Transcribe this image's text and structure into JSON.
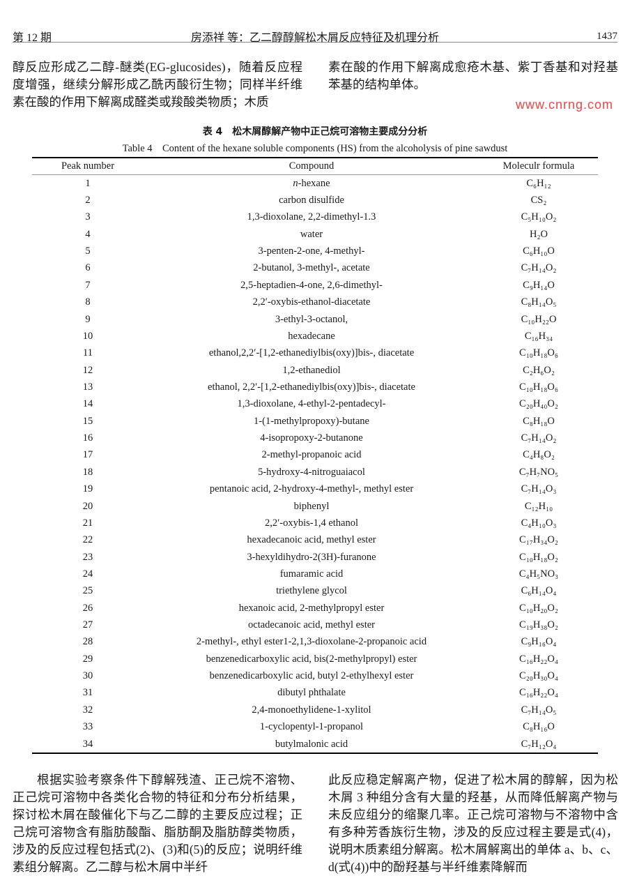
{
  "header": {
    "issue": "第 12 期",
    "running_title": "房添祥 等：乙二醇醇解松木屑反应特征及机理分析",
    "page_number": "1437"
  },
  "top": {
    "left": "醇反应形成乙二醇-醚类(EG-glucosides)，随着反应程度增强，继续分解形成乙酰丙酸衍生物；同样半纤维素在酸的作用下解离成醛类或羧酸类物质；木质",
    "right": "素在酸的作用下解离成愈疮木基、紫丁香基和对羟基苯基的结构单体。"
  },
  "table": {
    "caption_cn": "表 4　松木屑醇解产物中正己烷可溶物主要成分分析",
    "caption_en": "Table 4　Content of the hexane soluble components (HS) from the alcoholysis of pine sawdust",
    "headers": [
      "Peak number",
      "Compound",
      "Moleculr formula"
    ],
    "rows": [
      [
        "1",
        "n-hexane",
        "C₆H₁₂"
      ],
      [
        "2",
        "carbon disulfide",
        "CS₂"
      ],
      [
        "3",
        "1,3-dioxolane, 2,2-dimethyl-1.3",
        "C₅H₁₀O₂"
      ],
      [
        "4",
        "water",
        "H₂O"
      ],
      [
        "5",
        "3-penten-2-one, 4-methyl-",
        "C₆H₁₀O"
      ],
      [
        "6",
        "2-butanol, 3-methyl-, acetate",
        "C₇H₁₄O₂"
      ],
      [
        "7",
        "2,5-heptadien-4-one, 2,6-dimethyl-",
        "C₉H₁₄O"
      ],
      [
        "8",
        "2,2′-oxybis-ethanol-diacetate",
        "C₈H₁₄O₅"
      ],
      [
        "9",
        "3-ethyl-3-octanol,",
        "C₁₀H₂₂O"
      ],
      [
        "10",
        "hexadecane",
        "C₁₆H₃₄"
      ],
      [
        "11",
        "ethanol,2,2′-[1,2-ethanediylbis(oxy)]bis-, diacetate",
        "C₁₀H₁₈O₆"
      ],
      [
        "12",
        "1,2-ethanediol",
        "C₂H₆O₂"
      ],
      [
        "13",
        "ethanol, 2,2′-[1,2-ethanediylbis(oxy)]bis-, diacetate",
        "C₁₀H₁₈O₆"
      ],
      [
        "14",
        "1,3-dioxolane, 4-ethyl-2-pentadecyl-",
        "C₂₀H₄₀O₂"
      ],
      [
        "15",
        "1-(1-methylpropoxy)-butane",
        "C₈H₁₈O"
      ],
      [
        "16",
        "4-isopropoxy-2-butanone",
        "C₇H₁₄O₂"
      ],
      [
        "17",
        "2-methyl-propanoic acid",
        "C₄H₈O₂"
      ],
      [
        "18",
        "5-hydroxy-4-nitroguaiacol",
        "C₇H₇NO₅"
      ],
      [
        "19",
        "pentanoic acid, 2-hydroxy-4-methyl-, methyl ester",
        "C₇H₁₄O₃"
      ],
      [
        "20",
        "biphenyl",
        "C₁₂H₁₀"
      ],
      [
        "21",
        "2,2′-oxybis-1,4 ethanol",
        "C₄H₁₀O₃"
      ],
      [
        "22",
        "hexadecanoic acid, methyl ester",
        "C₁₇H₃₄O₂"
      ],
      [
        "23",
        "3-hexyldihydro-2(3H)-furanone",
        "C₁₀H₁₈O₂"
      ],
      [
        "24",
        "fumaramic acid",
        "C₄H₅NO₃"
      ],
      [
        "25",
        "triethylene glycol",
        "C₆H₁₄O₄"
      ],
      [
        "26",
        "hexanoic acid, 2-methylpropyl ester",
        "C₁₀H₂₀O₂"
      ],
      [
        "27",
        "octadecanoic acid, methyl ester",
        "C₁₉H₃₈O₂"
      ],
      [
        "28",
        "2-methyl-, ethyl ester1-2,1,3-dioxolane-2-propanoic acid",
        "C₉H₁₆O₄"
      ],
      [
        "29",
        "benzenedicarboxylic acid, bis(2-methylpropyl) ester",
        "C₁₆H₂₂O₄"
      ],
      [
        "30",
        "benzenedicarboxylic acid, butyl 2-ethylhexyl ester",
        "C₂₀H₃₀O₄"
      ],
      [
        "31",
        "dibutyl phthalate",
        "C₁₆H₂₂O₄"
      ],
      [
        "32",
        "2,4-monoethylidene-1-xylitol",
        "C₇H₁₄O₅"
      ],
      [
        "33",
        "1-cyclopentyl-1-propanol",
        "C₈H₁₆O"
      ],
      [
        "34",
        "butylmalonic acid",
        "C₇H₁₂O₄"
      ]
    ]
  },
  "bottom": {
    "left": "根据实验考察条件下醇解残渣、正己烷不溶物、正己烷可溶物中各类化合物的特征和分布分析结果，探讨松木屑在酸催化下与乙二醇的主要反应过程；正己烷可溶物含有脂肪酸酯、脂肪酮及脂肪醇类物质，涉及的反应过程包括式(2)、(3)和(5)的反应；说明纤维素组分解离。乙二醇与松木屑中半纤",
    "right": "此反应稳定解离产物，促进了松木屑的醇解，因为松木屑 3 种组分含有大量的羟基，从而降低解离产物与未反应组分的缩聚几率。正己烷可溶物与不溶物中含有多种芳香族衍生物，涉及的反应过程主要是式(4)，说明木质素组分解离。松木屑解离出的单体 a、b、c、d(式(4))中的酚羟基与半纤维素降解而"
  },
  "watermark": "www.cnrng.com"
}
